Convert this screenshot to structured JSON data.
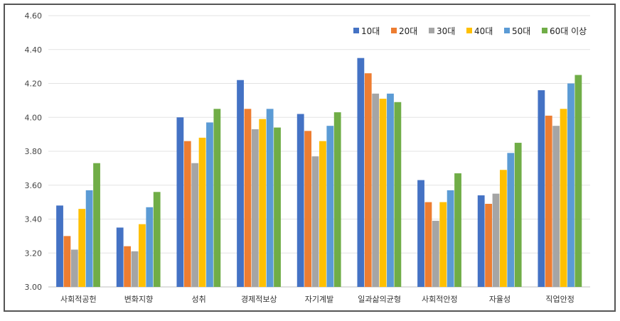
{
  "chart_data": {
    "type": "bar",
    "categories": [
      "사회적공헌",
      "변화지향",
      "성취",
      "경제적보상",
      "자기계발",
      "일과삶의균형",
      "사회적안정",
      "자율성",
      "직업안정"
    ],
    "ytick_labels": [
      "3.00",
      "3.20",
      "3.40",
      "3.60",
      "3.80",
      "4.00",
      "4.20",
      "4.40",
      "4.60"
    ],
    "ylim": [
      3.0,
      4.6
    ],
    "grid": true,
    "legend_position": "top-right",
    "series": [
      {
        "name": "10대",
        "color": "#4472C4",
        "values": [
          3.48,
          3.35,
          4.0,
          4.22,
          4.02,
          4.35,
          3.63,
          3.54,
          4.16
        ]
      },
      {
        "name": "20대",
        "color": "#ED7D31",
        "values": [
          3.3,
          3.24,
          3.86,
          4.05,
          3.92,
          4.26,
          3.5,
          3.49,
          4.01
        ]
      },
      {
        "name": "30대",
        "color": "#A5A5A5",
        "values": [
          3.22,
          3.21,
          3.73,
          3.93,
          3.77,
          4.14,
          3.39,
          3.55,
          3.95
        ]
      },
      {
        "name": "40대",
        "color": "#FFC000",
        "values": [
          3.46,
          3.37,
          3.88,
          3.99,
          3.86,
          4.11,
          3.5,
          3.69,
          4.05
        ]
      },
      {
        "name": "50대",
        "color": "#5B9BD5",
        "values": [
          3.57,
          3.47,
          3.97,
          4.05,
          3.95,
          4.14,
          3.57,
          3.79,
          4.2
        ]
      },
      {
        "name": "60대 이상",
        "color": "#70AD47",
        "values": [
          3.73,
          3.56,
          4.05,
          3.94,
          4.03,
          4.09,
          3.67,
          3.85,
          4.25
        ]
      }
    ]
  }
}
